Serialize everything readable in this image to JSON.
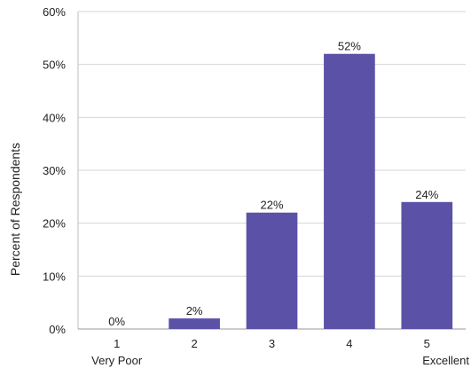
{
  "chart_data": {
    "type": "bar",
    "title": "",
    "xlabel": "",
    "ylabel": "Percent of Respondents",
    "categories": [
      "1",
      "2",
      "3",
      "4",
      "5"
    ],
    "category_sublabels": [
      "Very Poor",
      "",
      "",
      "",
      "Excellent"
    ],
    "values": [
      0,
      2,
      22,
      52,
      24
    ],
    "value_labels": [
      "0%",
      "2%",
      "22%",
      "52%",
      "24%"
    ],
    "ylim": [
      0,
      60
    ],
    "yticks": [
      0,
      10,
      20,
      30,
      40,
      50,
      60
    ],
    "ytick_labels": [
      "0%",
      "10%",
      "20%",
      "30%",
      "40%",
      "50%",
      "60%"
    ],
    "grid": true,
    "bar_color": "#5b52a8",
    "grid_color": "#d6d6d6"
  }
}
